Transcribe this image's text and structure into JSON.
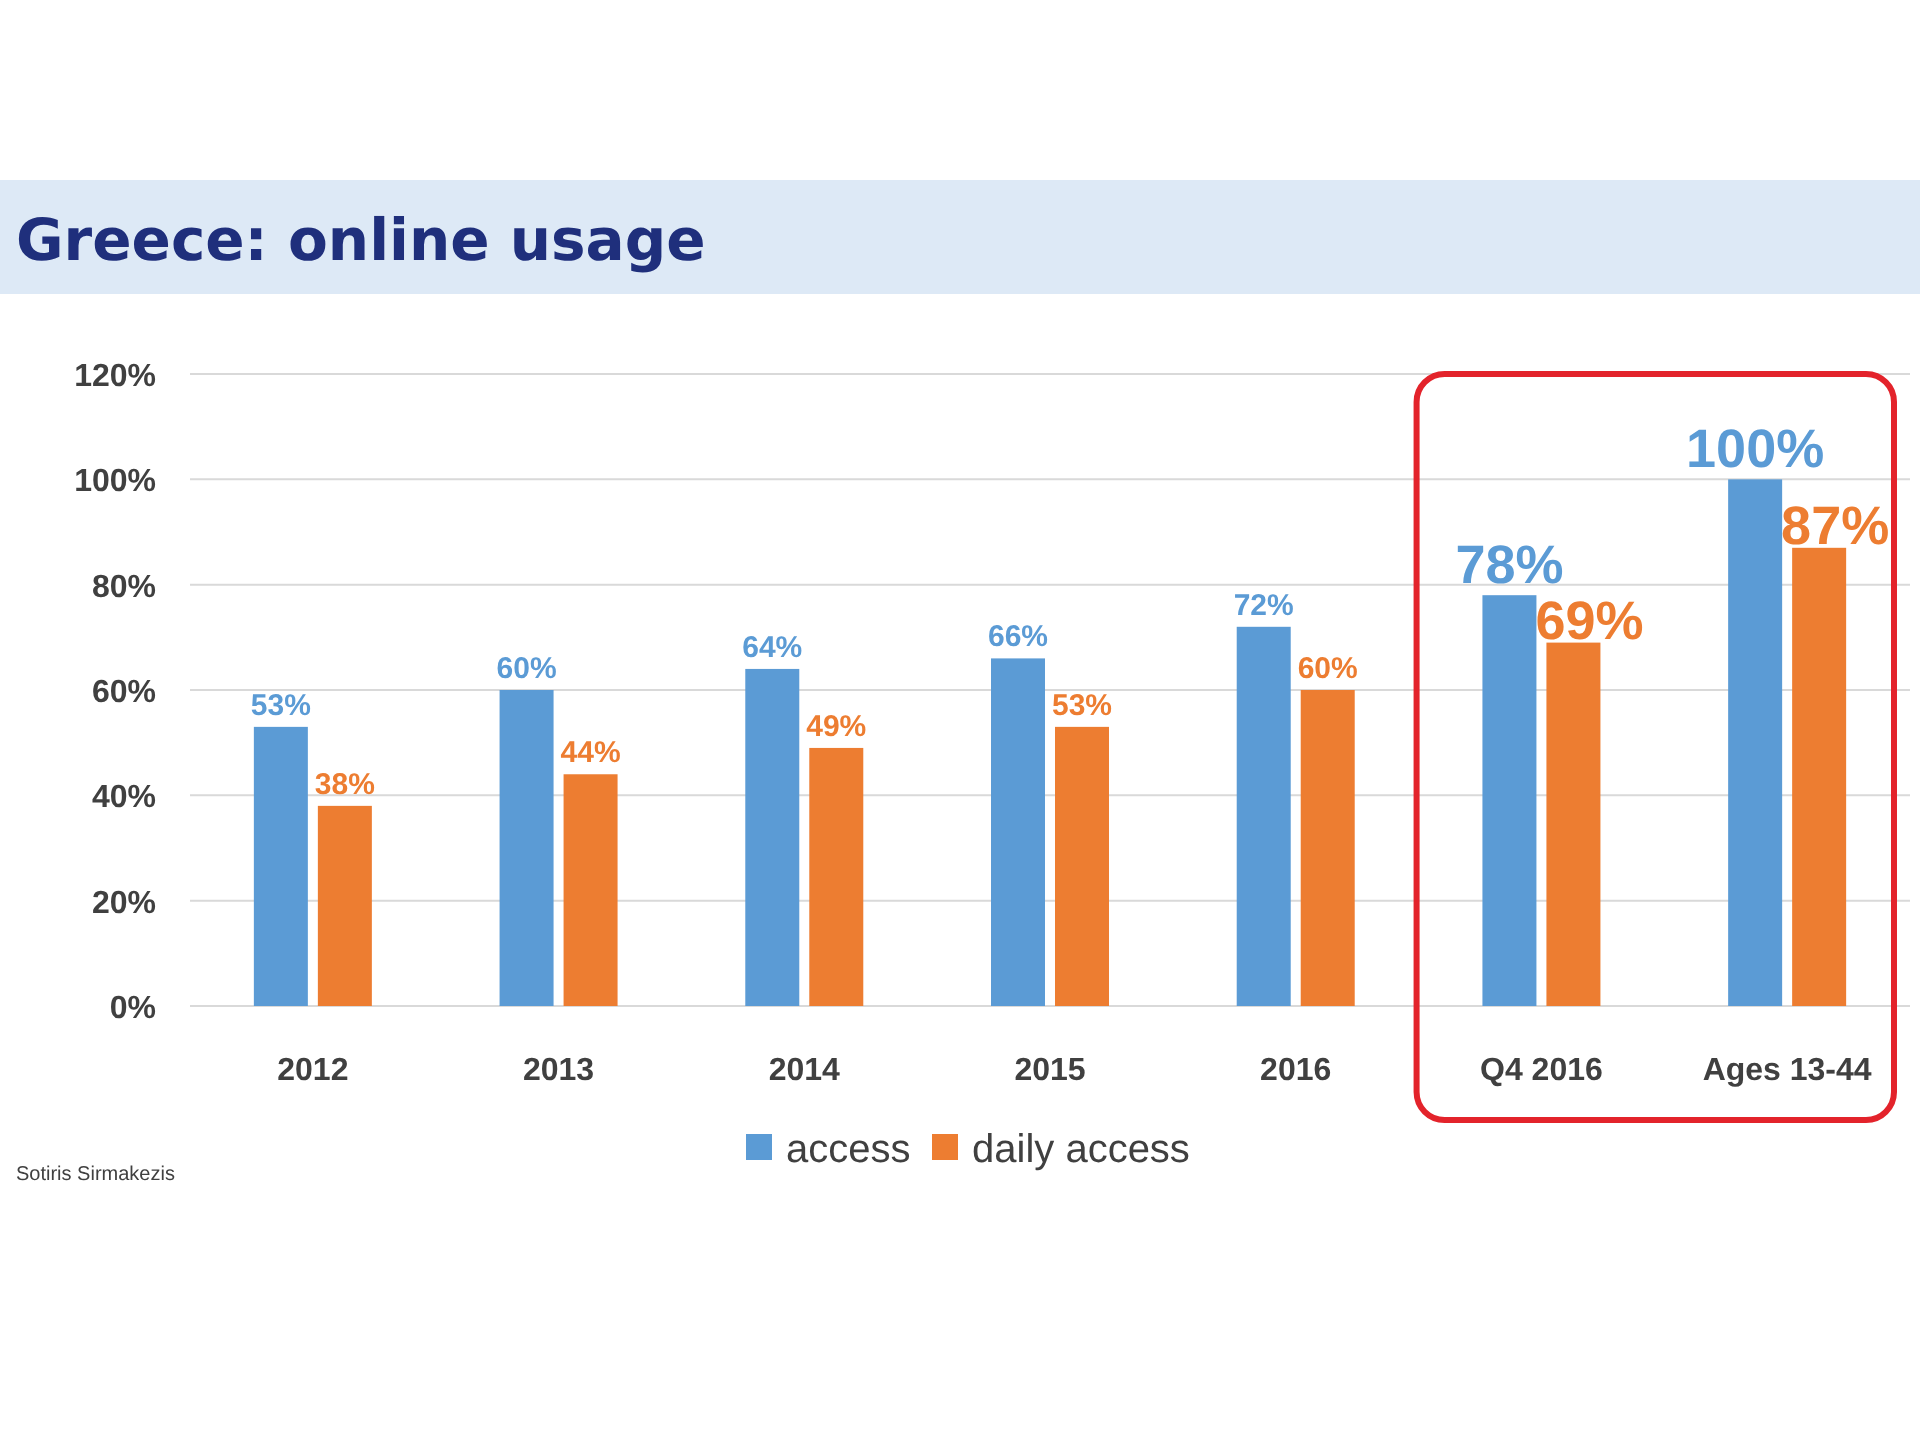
{
  "chart_data": {
    "type": "bar",
    "title": "Greece: online usage",
    "categories": [
      "2012",
      "2013",
      "2014",
      "2015",
      "2016",
      "Q4 2016",
      "Ages 13-44"
    ],
    "series": [
      {
        "name": "access",
        "color": "#5b9bd5",
        "values": [
          53,
          60,
          64,
          66,
          72,
          78,
          100
        ],
        "value_labels": [
          "53%",
          "60%",
          "64%",
          "66%",
          "72%",
          "78%",
          "100%"
        ]
      },
      {
        "name": "daily access",
        "color": "#ed7d31",
        "values": [
          38,
          44,
          49,
          53,
          60,
          69,
          87
        ],
        "value_labels": [
          "38%",
          "44%",
          "49%",
          "53%",
          "60%",
          "69%",
          "87%"
        ]
      }
    ],
    "ylim": [
      0,
      120
    ],
    "yticks": [
      {
        "value": 0,
        "label": "0%"
      },
      {
        "value": 20,
        "label": "20%"
      },
      {
        "value": 40,
        "label": "40%"
      },
      {
        "value": 60,
        "label": "60%"
      },
      {
        "value": 80,
        "label": "80%"
      },
      {
        "value": 100,
        "label": "100%"
      },
      {
        "value": 120,
        "label": "120%"
      }
    ],
    "grid": "y",
    "legend": "bottom",
    "annotations": [
      "Sotiris Sirmakezis"
    ]
  }
}
